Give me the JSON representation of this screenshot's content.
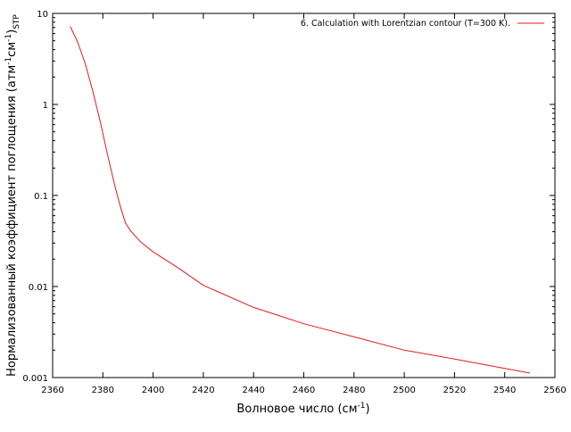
{
  "chart_data": {
    "type": "line",
    "title": "",
    "xlabel": {
      "text": "Волновое число (см",
      "sup": "-1",
      "suffix": ")"
    },
    "ylabel": {
      "pre": "Нормализованный коэффициент поглощения (атм",
      "sup1": "-1",
      "mid": "см",
      "sup2": "-1",
      "post": ")",
      "sub": "STP"
    },
    "xlim": [
      2360,
      2560
    ],
    "ylim": [
      0.001,
      10
    ],
    "yscale": "log",
    "grid": false,
    "legend_position": "top-right",
    "x_ticks": [
      2360,
      2380,
      2400,
      2420,
      2440,
      2460,
      2480,
      2500,
      2520,
      2540,
      2560
    ],
    "y_ticks": [
      {
        "value": 0.001,
        "label": "0.001"
      },
      {
        "value": 0.01,
        "label": "0.01"
      },
      {
        "value": 0.1,
        "label": "0.1"
      },
      {
        "value": 1,
        "label": "1"
      },
      {
        "value": 10,
        "label": "10"
      }
    ],
    "series": [
      {
        "name": "6. Calculation with Lorentzian contour (T=300 K).",
        "color": "#e41a1c",
        "x": [
          2367,
          2370,
          2373,
          2376,
          2379,
          2382,
          2385,
          2387,
          2389,
          2391,
          2395,
          2400,
          2410,
          2420,
          2430,
          2440,
          2450,
          2460,
          2480,
          2500,
          2520,
          2550
        ],
        "y": [
          7.2,
          4.8,
          2.8,
          1.4,
          0.64,
          0.27,
          0.12,
          0.075,
          0.05,
          0.041,
          0.031,
          0.024,
          0.016,
          0.0103,
          0.0078,
          0.0059,
          0.0048,
          0.0039,
          0.0028,
          0.002,
          0.0016,
          0.00112
        ]
      }
    ]
  }
}
